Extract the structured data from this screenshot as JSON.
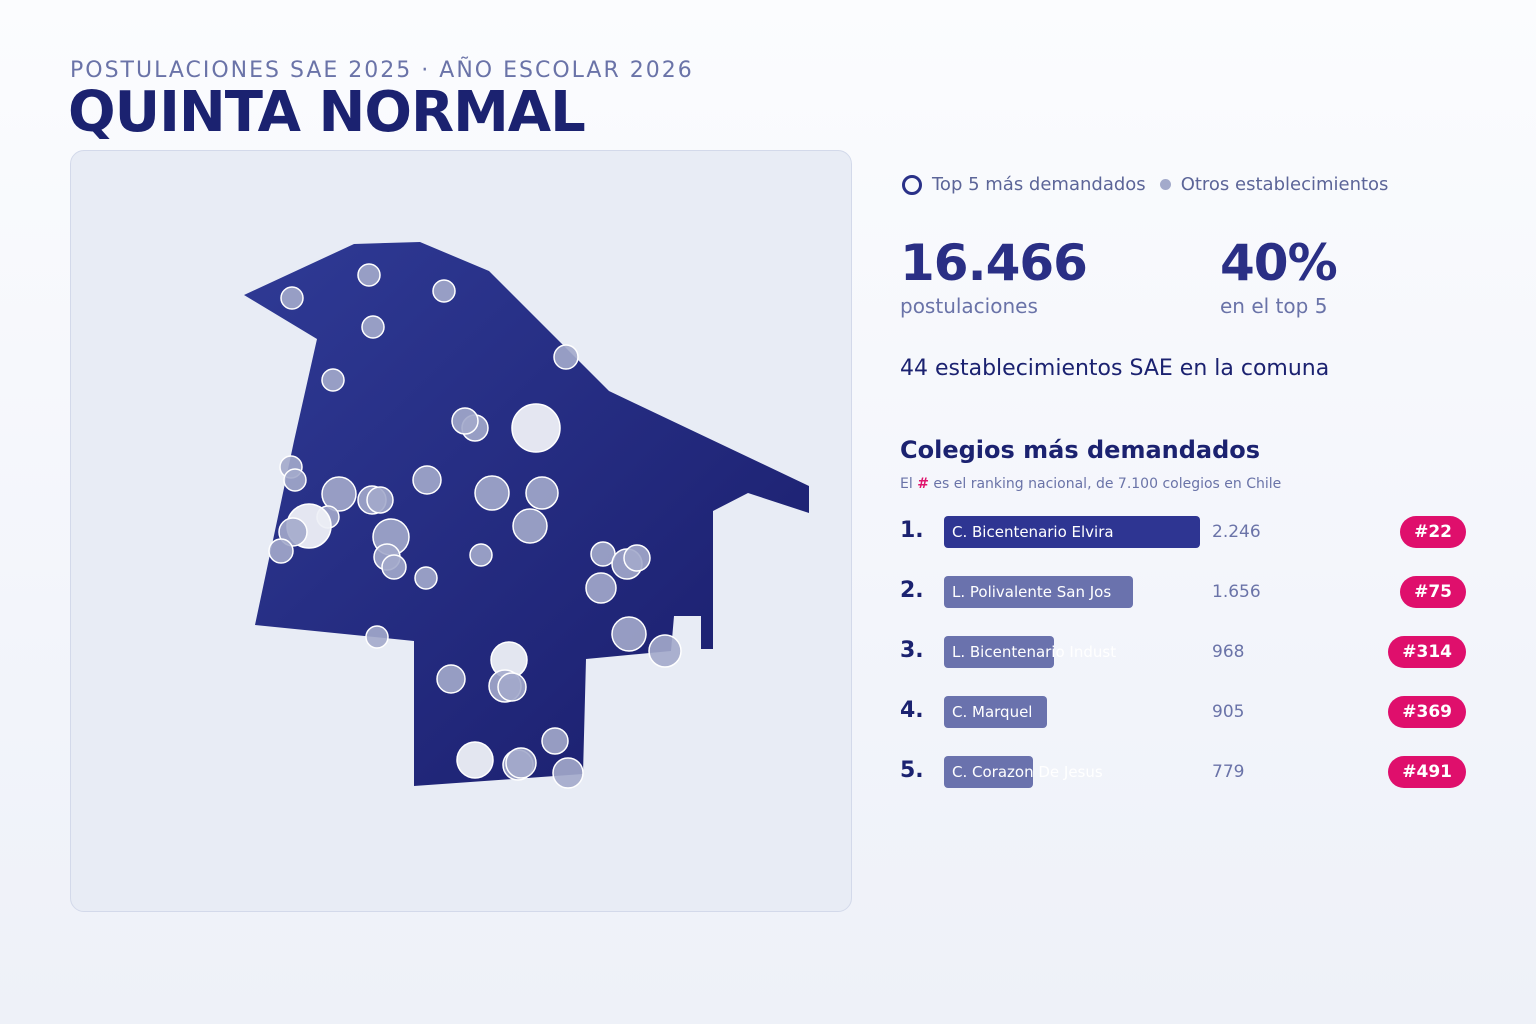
{
  "header": {
    "subtitle": "POSTULACIONES SAE 2025 · AÑO ESCOLAR 2026",
    "title": "QUINTA NORMAL"
  },
  "legend": {
    "top5": "Top 5 más demandados",
    "others": "Otros establecimientos"
  },
  "stats": {
    "postulaciones_value": "16.466",
    "postulaciones_label": "postulaciones",
    "top5_share_value": "40%",
    "top5_share_label": "en el top 5"
  },
  "establecimientos_text": "44 establecimientos SAE en la comuna",
  "ranking": {
    "title": "Colegios más demandados",
    "note_prefix": "El",
    "note_hash": "#",
    "note_suffix": "es el ranking nacional, de 7.100 colegios en Chile",
    "max_value": 2246,
    "items": [
      {
        "pos": "1.",
        "name": "C. Bicentenario Elvira",
        "value": 2246,
        "value_label": "2.246",
        "rank": "#22"
      },
      {
        "pos": "2.",
        "name": "L. Polivalente San Jos",
        "value": 1656,
        "value_label": "1.656",
        "rank": "#75"
      },
      {
        "pos": "3.",
        "name": "L. Bicentenario Indust",
        "value": 968,
        "value_label": "968",
        "rank": "#314"
      },
      {
        "pos": "4.",
        "name": "C. Marquel",
        "value": 905,
        "value_label": "905",
        "rank": "#369"
      },
      {
        "pos": "5.",
        "name": "C. Corazon De Jesus",
        "value": 779,
        "value_label": "779",
        "rank": "#491"
      }
    ]
  },
  "colors": {
    "commune_fill": "#24287e",
    "other_marker": "#a3aacb",
    "top_marker": "#eef0f7",
    "badge": "#df0f6c",
    "title": "#1b2270"
  }
}
